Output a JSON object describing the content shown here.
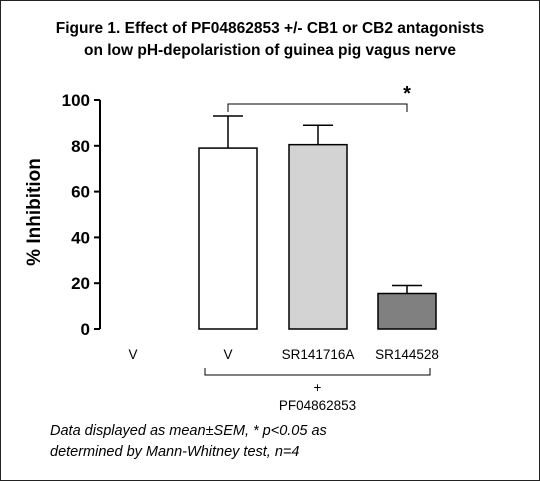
{
  "chart_data": {
    "type": "bar",
    "title_line1": "Figure 1. Effect of PF04862853 +/- CB1 or CB2 antagonists",
    "title_line2": "on low pH-depolaristion of guinea pig vagus nerve",
    "ylabel": "% Inhibition",
    "ylim": [
      0,
      100
    ],
    "yticks": [
      "0",
      "20",
      "40",
      "60",
      "80",
      "100"
    ],
    "categories": [
      "V",
      "V",
      "SR141716A",
      "SR144528"
    ],
    "values": [
      0,
      79,
      80.5,
      15.5
    ],
    "errors": [
      0,
      14,
      8.5,
      3.5
    ],
    "bar_colors": [
      "#ffffff",
      "#ffffff",
      "#d3d3d3",
      "#808080"
    ],
    "group_label_plus": "+",
    "group_label": "PF04862853",
    "significance": {
      "from": 1,
      "to": 3,
      "label": "*"
    }
  },
  "footnote_line1": "Data displayed as mean±SEM, * p<0.05 as",
  "footnote_line2": "determined by Mann-Whitney test, n=4"
}
